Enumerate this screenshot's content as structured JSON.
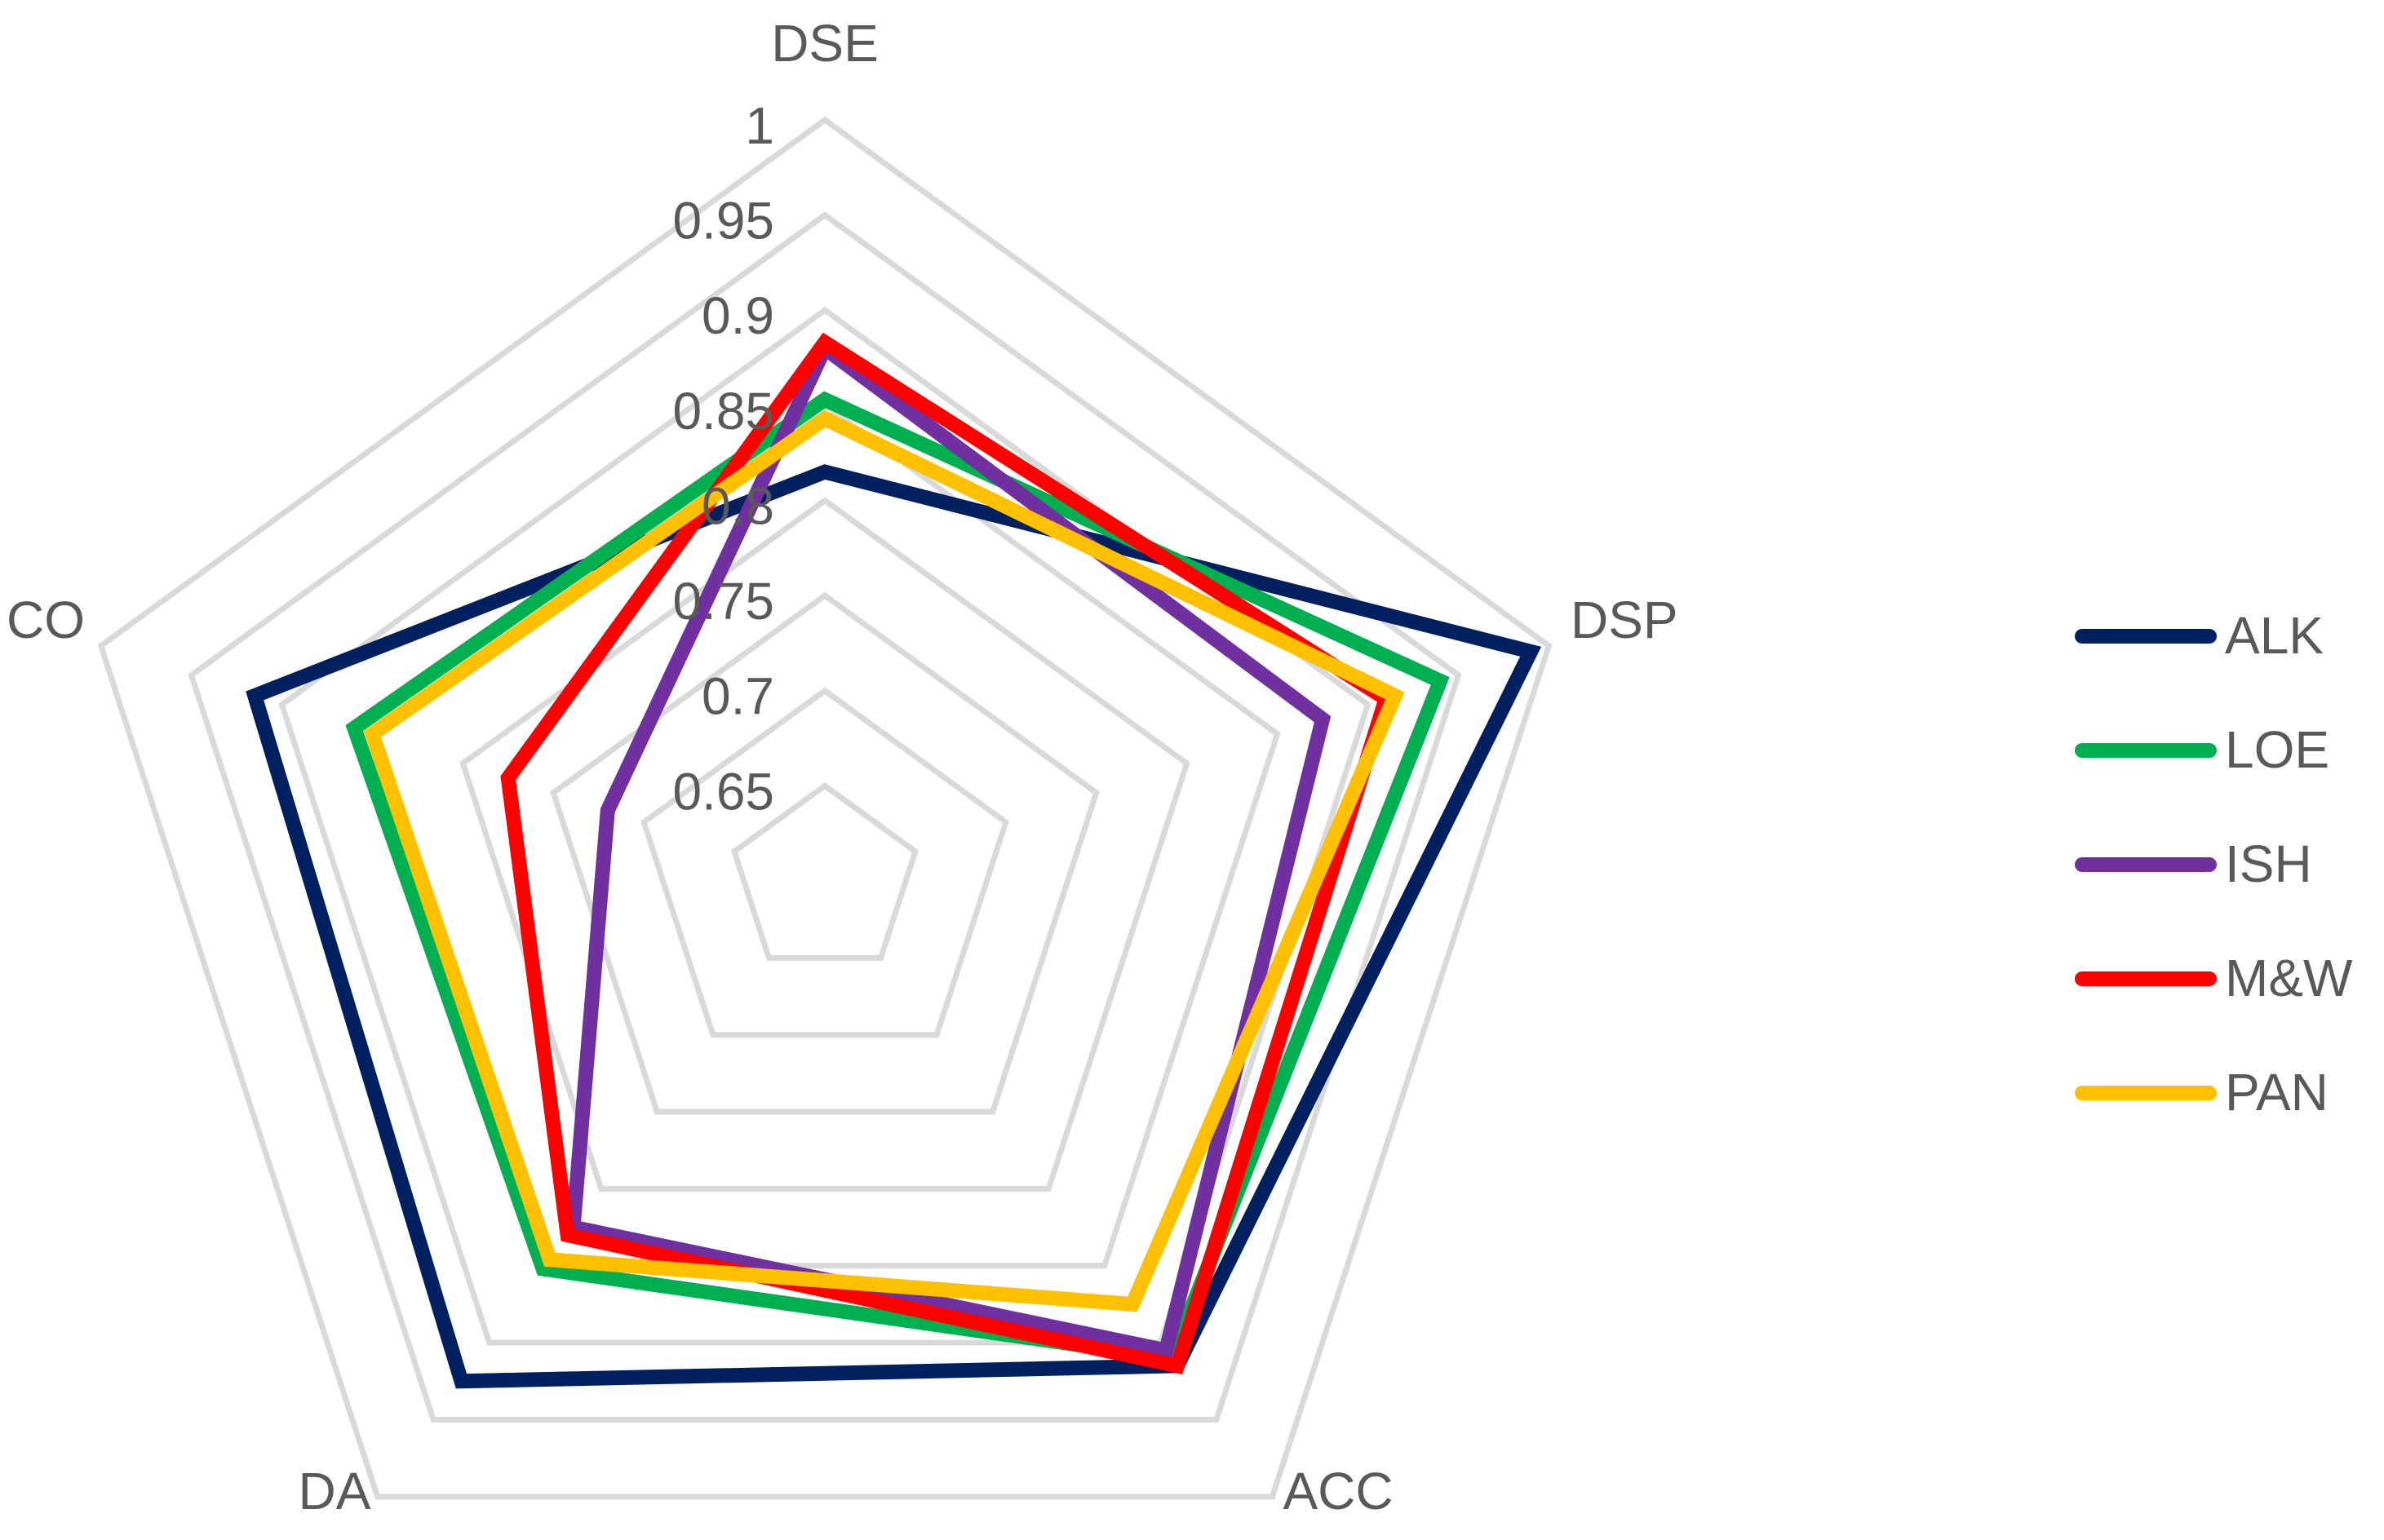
{
  "chart_data": {
    "type": "radar",
    "title": "",
    "axes": [
      "DSE",
      "DSP",
      "ACC",
      "DA",
      "CO"
    ],
    "rlim": [
      0.6,
      1
    ],
    "ticks": [
      "0.65",
      "0.7",
      "0.75",
      "0.8",
      "0.85",
      "0.9",
      "0.95",
      "1"
    ],
    "tick_values": [
      0.65,
      0.7,
      0.75,
      0.8,
      0.85,
      0.9,
      0.95,
      1.0
    ],
    "grid": true,
    "legend_position": "right",
    "series": [
      {
        "name": "ALK",
        "color": "#002060",
        "values": [
          0.815,
          0.99,
          0.915,
          0.925,
          0.915
        ]
      },
      {
        "name": "LOE",
        "color": "#00B050",
        "values": [
          0.853,
          0.94,
          0.91,
          0.852,
          0.86
        ]
      },
      {
        "name": "ISH",
        "color": "#7030A0",
        "values": [
          0.88,
          0.875,
          0.905,
          0.825,
          0.72
        ]
      },
      {
        "name": "M&W",
        "color": "#FF0000",
        "values": [
          0.883,
          0.91,
          0.915,
          0.83,
          0.775
        ]
      },
      {
        "name": "PAN",
        "color": "#FFC000",
        "values": [
          0.843,
          0.915,
          0.875,
          0.846,
          0.85
        ]
      }
    ]
  }
}
